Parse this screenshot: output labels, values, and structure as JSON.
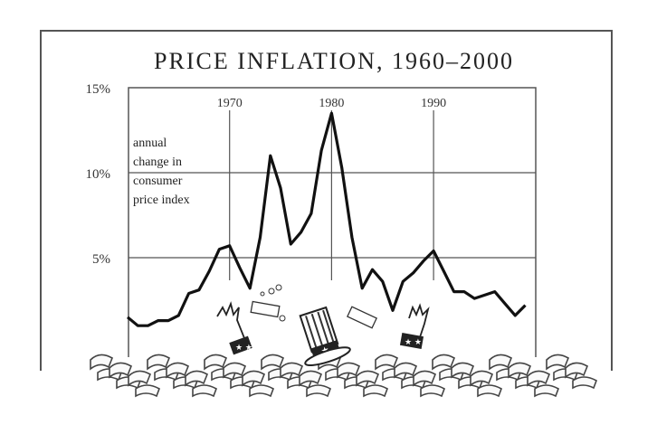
{
  "chart_data": {
    "type": "line",
    "title": "PRICE INFLATION, 1960–2000",
    "xlabel": "",
    "ylabel": "annual change in consumer price index",
    "annotation": [
      "annual",
      "change in",
      "consumer",
      "price index"
    ],
    "y_ticks": [
      "15%",
      "10%",
      "5%"
    ],
    "x_ticks": [
      "1970",
      "1980",
      "1990"
    ],
    "ylim": [
      0,
      15
    ],
    "xlim": [
      1960,
      2000
    ],
    "grid": true,
    "x": [
      1960,
      1961,
      1962,
      1963,
      1964,
      1965,
      1966,
      1967,
      1968,
      1969,
      1970,
      1971,
      1972,
      1973,
      1974,
      1975,
      1976,
      1977,
      1978,
      1979,
      1980,
      1981,
      1982,
      1983,
      1984,
      1985,
      1986,
      1987,
      1988,
      1989,
      1990,
      1991,
      1992,
      1993,
      1994,
      1995,
      1996,
      1997,
      1998,
      1999
    ],
    "series": [
      {
        "name": "CPI annual change (%)",
        "values": [
          1.5,
          1.0,
          1.0,
          1.3,
          1.3,
          1.6,
          2.9,
          3.1,
          4.2,
          5.5,
          5.7,
          4.4,
          3.2,
          6.2,
          11.0,
          9.1,
          5.8,
          6.5,
          7.6,
          11.3,
          13.5,
          10.3,
          6.2,
          3.2,
          4.3,
          3.6,
          1.9,
          3.6,
          4.1,
          4.8,
          5.4,
          4.2,
          3.0,
          3.0,
          2.6,
          2.8,
          3.0,
          2.3,
          1.6,
          2.2
        ]
      }
    ],
    "illustration": "Uncle Sam drowning in a sea of paper money"
  }
}
